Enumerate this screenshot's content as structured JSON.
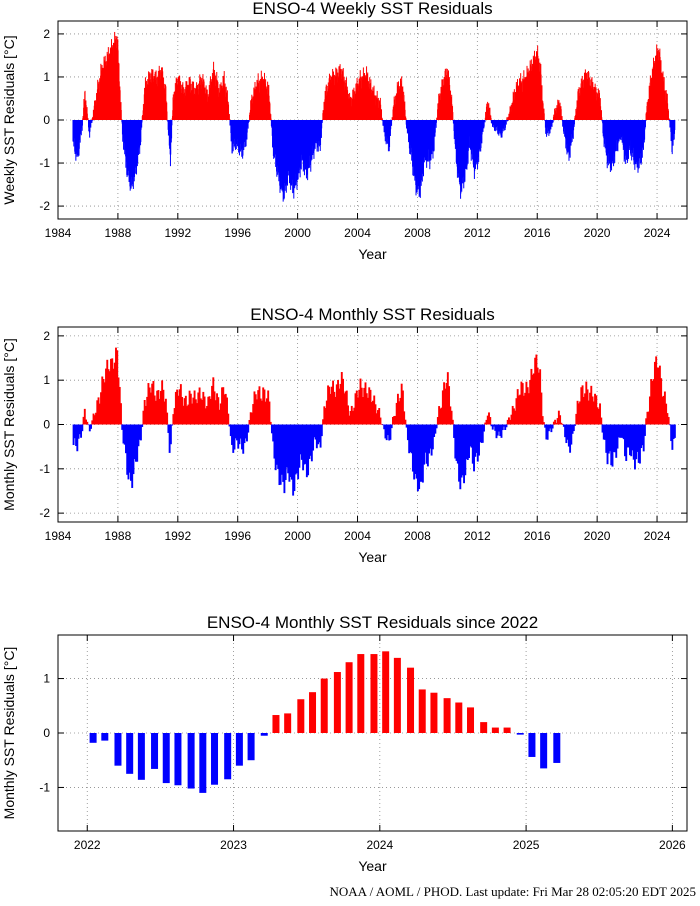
{
  "footer": "NOAA / AOML / PHOD.   Last update: Fri Mar 28 02:05:20 EDT 2025",
  "colors": {
    "positive": "#ff0000",
    "negative": "#0000ff",
    "grid": "#8a8a8a"
  },
  "chart_data": [
    {
      "type": "bar",
      "title": "ENSO-4 Weekly SST Residuals",
      "xlabel": "Year",
      "ylabel": "Weekly SST Residuals [°C]",
      "xlim": [
        1984,
        2026
      ],
      "ylim": [
        -2.3,
        2.3
      ],
      "xticks": [
        1984,
        1988,
        1992,
        1996,
        2000,
        2004,
        2008,
        2012,
        2016,
        2020,
        2024
      ],
      "yticks": [
        -2,
        -1,
        0,
        1,
        2
      ],
      "grid": true,
      "x_start": 1985.0,
      "x_step": 0.0192,
      "x_end": 2025.2,
      "anchors": [
        [
          1985.0,
          -0.5
        ],
        [
          1985.3,
          -0.8
        ],
        [
          1985.6,
          -0.2
        ],
        [
          1985.8,
          0.6
        ],
        [
          1986.1,
          -0.3
        ],
        [
          1986.5,
          0.4
        ],
        [
          1986.9,
          1.1
        ],
        [
          1987.3,
          1.4
        ],
        [
          1987.7,
          1.7
        ],
        [
          1987.95,
          1.9
        ],
        [
          1988.3,
          -0.3
        ],
        [
          1988.6,
          -1.1
        ],
        [
          1988.9,
          -1.5
        ],
        [
          1989.15,
          -1.2
        ],
        [
          1989.5,
          -0.5
        ],
        [
          1989.8,
          0.7
        ],
        [
          1990.2,
          1.0
        ],
        [
          1990.6,
          0.9
        ],
        [
          1990.9,
          1.1
        ],
        [
          1991.2,
          0.6
        ],
        [
          1991.5,
          -0.9
        ],
        [
          1991.7,
          0.5
        ],
        [
          1992.0,
          0.9
        ],
        [
          1992.4,
          0.6
        ],
        [
          1992.8,
          0.8
        ],
        [
          1993.2,
          0.6
        ],
        [
          1993.6,
          0.9
        ],
        [
          1994.0,
          0.5
        ],
        [
          1994.4,
          1.1
        ],
        [
          1994.8,
          0.6
        ],
        [
          1995.1,
          0.9
        ],
        [
          1995.4,
          0.3
        ],
        [
          1995.6,
          -0.6
        ],
        [
          1995.9,
          -0.5
        ],
        [
          1996.3,
          -0.7
        ],
        [
          1996.6,
          -0.4
        ],
        [
          1996.9,
          0.4
        ],
        [
          1997.3,
          0.8
        ],
        [
          1997.7,
          0.9
        ],
        [
          1998.1,
          0.6
        ],
        [
          1998.35,
          -0.6
        ],
        [
          1998.8,
          -1.4
        ],
        [
          1999.1,
          -1.7
        ],
        [
          1999.4,
          -1.2
        ],
        [
          1999.7,
          -1.6
        ],
        [
          2000.0,
          -1.3
        ],
        [
          2000.3,
          -0.9
        ],
        [
          2000.6,
          -1.2
        ],
        [
          2000.9,
          -0.9
        ],
        [
          2001.2,
          -0.5
        ],
        [
          2001.5,
          -0.6
        ],
        [
          2001.8,
          0.5
        ],
        [
          2002.2,
          0.9
        ],
        [
          2002.6,
          1.0
        ],
        [
          2002.9,
          1.1
        ],
        [
          2003.2,
          0.8
        ],
        [
          2003.5,
          0.4
        ],
        [
          2003.8,
          0.6
        ],
        [
          2004.2,
          0.9
        ],
        [
          2004.6,
          1.0
        ],
        [
          2004.9,
          0.7
        ],
        [
          2005.2,
          0.5
        ],
        [
          2005.5,
          0.4
        ],
        [
          2005.8,
          -0.3
        ],
        [
          2006.1,
          -0.6
        ],
        [
          2006.4,
          0.3
        ],
        [
          2006.7,
          0.7
        ],
        [
          2007.0,
          0.8
        ],
        [
          2007.3,
          -0.2
        ],
        [
          2007.6,
          -0.8
        ],
        [
          2007.9,
          -1.5
        ],
        [
          2008.2,
          -1.6
        ],
        [
          2008.5,
          -0.8
        ],
        [
          2008.8,
          -0.9
        ],
        [
          2009.1,
          -0.6
        ],
        [
          2009.4,
          0.4
        ],
        [
          2009.7,
          0.8
        ],
        [
          2010.0,
          1.1
        ],
        [
          2010.3,
          0.4
        ],
        [
          2010.6,
          -0.9
        ],
        [
          2010.9,
          -1.6
        ],
        [
          2011.2,
          -1.2
        ],
        [
          2011.5,
          -0.5
        ],
        [
          2011.8,
          -1.1
        ],
        [
          2012.1,
          -0.8
        ],
        [
          2012.4,
          -0.2
        ],
        [
          2012.7,
          0.4
        ],
        [
          2013.0,
          -0.1
        ],
        [
          2013.3,
          -0.2
        ],
        [
          2013.6,
          -0.3
        ],
        [
          2013.9,
          -0.1
        ],
        [
          2014.2,
          0.2
        ],
        [
          2014.5,
          0.6
        ],
        [
          2014.8,
          0.8
        ],
        [
          2015.2,
          0.9
        ],
        [
          2015.6,
          1.2
        ],
        [
          2016.0,
          1.5
        ],
        [
          2016.2,
          1.2
        ],
        [
          2016.4,
          0.3
        ],
        [
          2016.6,
          -0.3
        ],
        [
          2016.9,
          -0.2
        ],
        [
          2017.2,
          0.2
        ],
        [
          2017.5,
          0.4
        ],
        [
          2017.8,
          -0.3
        ],
        [
          2018.1,
          -0.8
        ],
        [
          2018.4,
          -0.3
        ],
        [
          2018.7,
          0.5
        ],
        [
          2019.0,
          0.8
        ],
        [
          2019.3,
          1.0
        ],
        [
          2019.6,
          0.8
        ],
        [
          2019.9,
          0.6
        ],
        [
          2020.2,
          0.5
        ],
        [
          2020.4,
          -0.3
        ],
        [
          2020.7,
          -0.9
        ],
        [
          2021.0,
          -1.0
        ],
        [
          2021.3,
          -0.6
        ],
        [
          2021.6,
          -0.3
        ],
        [
          2021.9,
          -0.9
        ],
        [
          2022.2,
          -0.6
        ],
        [
          2022.5,
          -0.9
        ],
        [
          2022.8,
          -1.0
        ],
        [
          2023.1,
          -0.6
        ],
        [
          2023.3,
          0.2
        ],
        [
          2023.6,
          0.9
        ],
        [
          2023.9,
          1.4
        ],
        [
          2024.1,
          1.6
        ],
        [
          2024.4,
          0.9
        ],
        [
          2024.7,
          0.4
        ],
        [
          2025.0,
          -0.6
        ],
        [
          2025.2,
          -0.3
        ]
      ]
    },
    {
      "type": "bar",
      "title": "ENSO-4 Monthly SST Residuals",
      "xlabel": "Year",
      "ylabel": "Monthly SST Residuals [°C]",
      "xlim": [
        1984,
        2026
      ],
      "ylim": [
        -2.2,
        2.2
      ],
      "xticks": [
        1984,
        1988,
        1992,
        1996,
        2000,
        2004,
        2008,
        2012,
        2016,
        2020,
        2024
      ],
      "yticks": [
        -2,
        -1,
        0,
        1,
        2
      ],
      "grid": true,
      "x_start": 1985.04,
      "x_step": 0.0833,
      "x_end": 2025.2,
      "anchors": [
        [
          1985.0,
          -0.45
        ],
        [
          1985.3,
          -0.55
        ],
        [
          1985.6,
          -0.15
        ],
        [
          1985.8,
          0.4
        ],
        [
          1986.1,
          -0.2
        ],
        [
          1986.5,
          0.3
        ],
        [
          1986.9,
          0.9
        ],
        [
          1987.3,
          1.2
        ],
        [
          1987.7,
          1.5
        ],
        [
          1987.95,
          1.7
        ],
        [
          1988.3,
          -0.2
        ],
        [
          1988.6,
          -0.9
        ],
        [
          1988.9,
          -1.3
        ],
        [
          1989.15,
          -1.0
        ],
        [
          1989.5,
          -0.4
        ],
        [
          1989.8,
          0.6
        ],
        [
          1990.2,
          0.8
        ],
        [
          1990.6,
          0.7
        ],
        [
          1990.9,
          0.9
        ],
        [
          1991.2,
          0.5
        ],
        [
          1991.5,
          -0.7
        ],
        [
          1991.7,
          0.4
        ],
        [
          1992.0,
          0.8
        ],
        [
          1992.4,
          0.5
        ],
        [
          1992.8,
          0.7
        ],
        [
          1993.2,
          0.5
        ],
        [
          1993.6,
          0.8
        ],
        [
          1994.0,
          0.4
        ],
        [
          1994.4,
          0.9
        ],
        [
          1994.8,
          0.5
        ],
        [
          1995.1,
          0.8
        ],
        [
          1995.4,
          0.2
        ],
        [
          1995.6,
          -0.5
        ],
        [
          1995.9,
          -0.4
        ],
        [
          1996.3,
          -0.6
        ],
        [
          1996.6,
          -0.3
        ],
        [
          1996.9,
          0.3
        ],
        [
          1997.3,
          0.7
        ],
        [
          1997.7,
          0.8
        ],
        [
          1998.1,
          0.5
        ],
        [
          1998.35,
          -0.5
        ],
        [
          1998.8,
          -1.2
        ],
        [
          1999.1,
          -1.5
        ],
        [
          1999.4,
          -1.0
        ],
        [
          1999.7,
          -1.4
        ],
        [
          2000.0,
          -1.2
        ],
        [
          2000.3,
          -0.8
        ],
        [
          2000.6,
          -1.0
        ],
        [
          2000.9,
          -0.8
        ],
        [
          2001.2,
          -0.4
        ],
        [
          2001.5,
          -0.5
        ],
        [
          2001.8,
          0.4
        ],
        [
          2002.2,
          0.8
        ],
        [
          2002.6,
          0.9
        ],
        [
          2002.9,
          1.0
        ],
        [
          2003.2,
          0.7
        ],
        [
          2003.5,
          0.3
        ],
        [
          2003.8,
          0.5
        ],
        [
          2004.2,
          0.8
        ],
        [
          2004.6,
          0.9
        ],
        [
          2004.9,
          0.6
        ],
        [
          2005.2,
          0.4
        ],
        [
          2005.5,
          0.3
        ],
        [
          2005.8,
          -0.2
        ],
        [
          2006.1,
          -0.5
        ],
        [
          2006.4,
          0.2
        ],
        [
          2006.7,
          0.6
        ],
        [
          2007.0,
          0.7
        ],
        [
          2007.3,
          -0.2
        ],
        [
          2007.6,
          -0.7
        ],
        [
          2007.9,
          -1.4
        ],
        [
          2008.2,
          -1.5
        ],
        [
          2008.5,
          -0.7
        ],
        [
          2008.8,
          -0.8
        ],
        [
          2009.1,
          -0.5
        ],
        [
          2009.4,
          0.3
        ],
        [
          2009.7,
          0.7
        ],
        [
          2010.0,
          1.0
        ],
        [
          2010.3,
          0.3
        ],
        [
          2010.6,
          -0.8
        ],
        [
          2010.9,
          -1.5
        ],
        [
          2011.2,
          -1.1
        ],
        [
          2011.5,
          -0.4
        ],
        [
          2011.8,
          -1.0
        ],
        [
          2012.1,
          -0.7
        ],
        [
          2012.4,
          -0.2
        ],
        [
          2012.7,
          0.3
        ],
        [
          2013.0,
          -0.1
        ],
        [
          2013.3,
          -0.2
        ],
        [
          2013.6,
          -0.2
        ],
        [
          2013.9,
          -0.1
        ],
        [
          2014.2,
          0.2
        ],
        [
          2014.5,
          0.5
        ],
        [
          2014.8,
          0.7
        ],
        [
          2015.2,
          0.8
        ],
        [
          2015.6,
          1.1
        ],
        [
          2016.0,
          1.4
        ],
        [
          2016.2,
          1.1
        ],
        [
          2016.4,
          0.2
        ],
        [
          2016.6,
          -0.3
        ],
        [
          2016.9,
          -0.2
        ],
        [
          2017.2,
          0.1
        ],
        [
          2017.5,
          0.3
        ],
        [
          2017.8,
          -0.2
        ],
        [
          2018.1,
          -0.6
        ],
        [
          2018.4,
          -0.2
        ],
        [
          2018.7,
          0.4
        ],
        [
          2019.0,
          0.7
        ],
        [
          2019.3,
          0.9
        ],
        [
          2019.6,
          0.7
        ],
        [
          2019.9,
          0.5
        ],
        [
          2020.2,
          0.4
        ],
        [
          2020.4,
          -0.2
        ],
        [
          2020.7,
          -0.8
        ],
        [
          2021.0,
          -0.9
        ],
        [
          2021.3,
          -0.5
        ],
        [
          2021.6,
          -0.2
        ],
        [
          2021.9,
          -0.8
        ],
        [
          2022.2,
          -0.5
        ],
        [
          2022.5,
          -0.8
        ],
        [
          2022.8,
          -0.9
        ],
        [
          2023.1,
          -0.5
        ],
        [
          2023.3,
          0.2
        ],
        [
          2023.6,
          0.8
        ],
        [
          2023.9,
          1.3
        ],
        [
          2024.1,
          1.45
        ],
        [
          2024.4,
          0.8
        ],
        [
          2024.7,
          0.3
        ],
        [
          2025.0,
          -0.5
        ],
        [
          2025.2,
          -0.3
        ]
      ]
    },
    {
      "type": "bar",
      "title": "ENSO-4 Monthly SST Residuals since 2022",
      "xlabel": "Year",
      "ylabel": "Monthly SST Residuals [°C]",
      "xlim": [
        2021.8,
        2026.1
      ],
      "ylim": [
        -1.8,
        1.8
      ],
      "xticks": [
        2022,
        2023,
        2024,
        2025,
        2026
      ],
      "yticks": [
        -1,
        0,
        1
      ],
      "grid": true,
      "categories": [
        "Jan 2022",
        "Feb 2022",
        "Mar 2022",
        "Apr 2022",
        "May 2022",
        "Jun 2022",
        "Jul 2022",
        "Aug 2022",
        "Sep 2022",
        "Oct 2022",
        "Nov 2022",
        "Dec 2022",
        "Jan 2023",
        "Feb 2023",
        "Mar 2023",
        "Apr 2023",
        "May 2023",
        "Jun 2023",
        "Jul 2023",
        "Aug 2023",
        "Sep 2023",
        "Oct 2023",
        "Nov 2023",
        "Dec 2023",
        "Jan 2024",
        "Feb 2024",
        "Mar 2024",
        "Apr 2024",
        "May 2024",
        "Jun 2024",
        "Jul 2024",
        "Aug 2024",
        "Sep 2024",
        "Oct 2024",
        "Nov 2024",
        "Dec 2024",
        "Jan 2025",
        "Feb 2025",
        "Mar 2025"
      ],
      "x": [
        2022.04,
        2022.12,
        2022.21,
        2022.29,
        2022.37,
        2022.46,
        2022.54,
        2022.62,
        2022.71,
        2022.79,
        2022.87,
        2022.96,
        2023.04,
        2023.12,
        2023.21,
        2023.29,
        2023.37,
        2023.46,
        2023.54,
        2023.62,
        2023.71,
        2023.79,
        2023.87,
        2023.96,
        2024.04,
        2024.12,
        2024.21,
        2024.29,
        2024.37,
        2024.46,
        2024.54,
        2024.62,
        2024.71,
        2024.79,
        2024.87,
        2024.96,
        2025.04,
        2025.12,
        2025.21
      ],
      "values": [
        -0.18,
        -0.14,
        -0.6,
        -0.75,
        -0.86,
        -0.66,
        -0.92,
        -0.96,
        -1.02,
        -1.1,
        -0.95,
        -0.85,
        -0.6,
        -0.5,
        -0.05,
        0.33,
        0.36,
        0.62,
        0.75,
        1.0,
        1.12,
        1.3,
        1.45,
        1.45,
        1.5,
        1.38,
        1.2,
        0.8,
        0.74,
        0.64,
        0.56,
        0.47,
        0.2,
        0.1,
        0.1,
        -0.03,
        -0.44,
        -0.65,
        -0.55
      ]
    }
  ]
}
